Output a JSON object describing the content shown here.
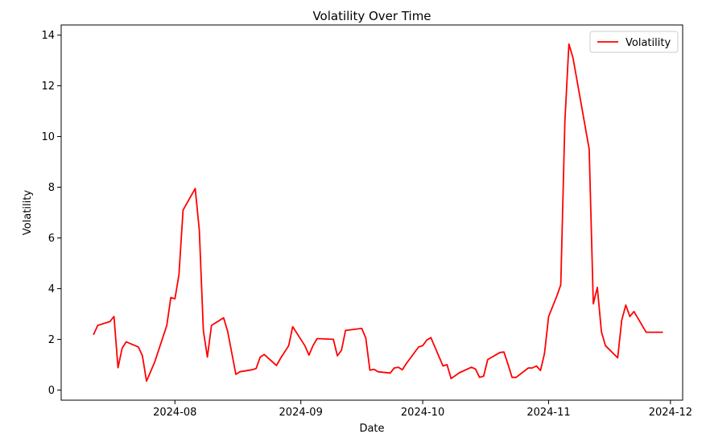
{
  "chart_data": {
    "type": "line",
    "title": "Volatility Over Time",
    "xlabel": "Date",
    "ylabel": "Volatility",
    "x_ticks": [
      "2024-08",
      "2024-09",
      "2024-10",
      "2024-11",
      "2024-12"
    ],
    "y_ticks": [
      "0",
      "2",
      "4",
      "6",
      "8",
      "10",
      "12",
      "14"
    ],
    "ylim": [
      -0.4,
      14.4
    ],
    "xlim": [
      "2024-07-04",
      "2024-12-04"
    ],
    "grid": false,
    "legend": "top-right",
    "series": [
      {
        "name": "Volatility",
        "color": "#ff0000",
        "x": [
          "2024-07-12",
          "2024-07-13",
          "2024-07-16",
          "2024-07-17",
          "2024-07-18",
          "2024-07-19",
          "2024-07-20",
          "2024-07-23",
          "2024-07-24",
          "2024-07-25",
          "2024-07-27",
          "2024-07-30",
          "2024-07-31",
          "2024-08-01",
          "2024-08-02",
          "2024-08-03",
          "2024-08-06",
          "2024-08-07",
          "2024-08-08",
          "2024-08-09",
          "2024-08-10",
          "2024-08-13",
          "2024-08-14",
          "2024-08-16",
          "2024-08-17",
          "2024-08-20",
          "2024-08-21",
          "2024-08-22",
          "2024-08-23",
          "2024-08-26",
          "2024-08-27",
          "2024-08-29",
          "2024-08-30",
          "2024-09-02",
          "2024-09-03",
          "2024-09-04",
          "2024-09-05",
          "2024-09-09",
          "2024-09-10",
          "2024-09-11",
          "2024-09-12",
          "2024-09-16",
          "2024-09-17",
          "2024-09-18",
          "2024-09-19",
          "2024-09-20",
          "2024-09-23",
          "2024-09-24",
          "2024-09-25",
          "2024-09-26",
          "2024-09-27",
          "2024-09-30",
          "2024-10-01",
          "2024-10-02",
          "2024-10-03",
          "2024-10-06",
          "2024-10-07",
          "2024-10-08",
          "2024-10-10",
          "2024-10-13",
          "2024-10-14",
          "2024-10-15",
          "2024-10-16",
          "2024-10-17",
          "2024-10-20",
          "2024-10-21",
          "2024-10-22",
          "2024-10-23",
          "2024-10-24",
          "2024-10-27",
          "2024-10-28",
          "2024-10-29",
          "2024-10-30",
          "2024-10-31",
          "2024-11-01",
          "2024-11-03",
          "2024-11-04",
          "2024-11-05",
          "2024-11-06",
          "2024-11-07",
          "2024-11-11",
          "2024-11-12",
          "2024-11-13",
          "2024-11-14",
          "2024-11-15",
          "2024-11-18",
          "2024-11-19",
          "2024-11-20",
          "2024-11-21",
          "2024-11-22",
          "2024-11-25",
          "2024-11-29"
        ],
        "values": [
          2.2,
          2.55,
          2.7,
          2.9,
          0.88,
          1.65,
          1.9,
          1.7,
          1.35,
          0.35,
          1.1,
          2.55,
          3.65,
          3.6,
          4.55,
          7.1,
          7.95,
          6.3,
          2.35,
          1.3,
          2.55,
          2.85,
          2.3,
          0.62,
          0.72,
          0.8,
          0.85,
          1.3,
          1.4,
          0.97,
          1.25,
          1.75,
          2.5,
          1.75,
          1.38,
          1.75,
          2.03,
          2.0,
          1.35,
          1.57,
          2.35,
          2.43,
          2.05,
          0.78,
          0.82,
          0.72,
          0.67,
          0.87,
          0.9,
          0.8,
          1.05,
          1.7,
          1.75,
          1.97,
          2.07,
          0.95,
          1.0,
          0.45,
          0.68,
          0.9,
          0.83,
          0.5,
          0.55,
          1.2,
          1.48,
          1.5,
          1.02,
          0.5,
          0.5,
          0.87,
          0.87,
          0.95,
          0.77,
          1.45,
          2.9,
          3.7,
          4.15,
          10.6,
          13.65,
          13.1,
          9.5,
          3.4,
          4.05,
          2.3,
          1.75,
          1.27,
          2.75,
          3.35,
          2.9,
          3.1,
          2.28,
          2.28
        ]
      }
    ]
  }
}
